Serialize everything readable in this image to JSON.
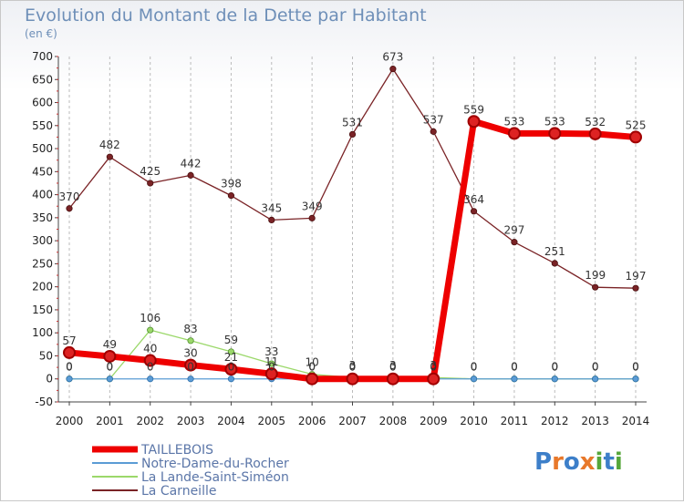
{
  "chart_data": {
    "type": "line",
    "title": "Evolution du Montant de la Dette par Habitant",
    "subtitle": "(en €)",
    "xlabel": "",
    "ylabel": "",
    "ylim": [
      -50,
      700
    ],
    "y_ticks": [
      -50,
      0,
      50,
      100,
      150,
      200,
      250,
      300,
      350,
      400,
      450,
      500,
      550,
      600,
      650,
      700
    ],
    "x": [
      "2000",
      "2001",
      "2002",
      "2003",
      "2004",
      "2005",
      "2006",
      "2007",
      "2008",
      "2009",
      "2010",
      "2011",
      "2012",
      "2013",
      "2014"
    ],
    "grid": "vertical dashed",
    "legend_position": "bottom-left",
    "series": [
      {
        "name": "La Carneille",
        "color": "#7a2326",
        "values": [
          370,
          482,
          425,
          442,
          398,
          345,
          349,
          531,
          673,
          537,
          364,
          297,
          251,
          199,
          197
        ],
        "labels": [
          "370",
          "482",
          "425",
          "442",
          "398",
          "345",
          "349",
          "531",
          "673",
          "537",
          "364",
          "297",
          "251",
          "199",
          "197"
        ]
      },
      {
        "name": "La Lande-Saint-Siméon",
        "color": "#9bd86a",
        "values": [
          0,
          0,
          106,
          83,
          59,
          33,
          10,
          3,
          3,
          3,
          0,
          0,
          0,
          0,
          0
        ],
        "labels": [
          "0",
          "0",
          "106",
          "83",
          "59",
          "33",
          "10",
          "3",
          "3",
          "3",
          "0",
          "0",
          "0",
          "0",
          "0"
        ]
      },
      {
        "name": "Notre-Dame-du-Rocher",
        "color": "#5a9bd5",
        "values": [
          0,
          0,
          0,
          0,
          0,
          0,
          0,
          0,
          0,
          0,
          0,
          0,
          0,
          0,
          0
        ],
        "labels": [
          "0",
          "0",
          "0",
          "0",
          "0",
          "0",
          "0",
          "0",
          "0",
          "0",
          "0",
          "0",
          "0",
          "0",
          "0"
        ]
      },
      {
        "name": "TAILLEBOIS",
        "color": "#ee0000",
        "values": [
          57,
          49,
          40,
          30,
          21,
          11,
          0,
          0,
          0,
          0,
          559,
          533,
          533,
          532,
          525
        ],
        "labels": [
          "57",
          "49",
          "40",
          "30",
          "21",
          "11",
          "0",
          "0",
          "0",
          "0",
          "559",
          "533",
          "533",
          "532",
          "525"
        ]
      }
    ],
    "legend": [
      "TAILLEBOIS",
      "Notre-Dame-du-Rocher",
      "La Lande-Saint-Siméon",
      "La Carneille"
    ]
  },
  "branding": {
    "logo_text": "Proxiti",
    "letters": [
      "P",
      "r",
      "o",
      "x",
      "i",
      "t",
      "i"
    ]
  }
}
